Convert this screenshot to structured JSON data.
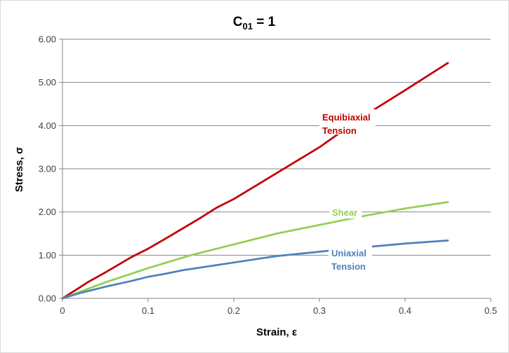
{
  "chart_data": {
    "type": "line",
    "title": "C",
    "title_subscript": "01",
    "title_suffix": " = 1",
    "xlabel": "Strain, ε",
    "ylabel": "Stress, σ",
    "xlim": [
      0,
      0.5
    ],
    "ylim": [
      0,
      6
    ],
    "x_ticks": [
      0,
      0.1,
      0.2,
      0.3,
      0.4,
      0.5
    ],
    "x_tick_labels": [
      "0",
      "0.1",
      "0.2",
      "0.3",
      "0.4",
      "0.5"
    ],
    "y_ticks": [
      0,
      1,
      2,
      3,
      4,
      5,
      6
    ],
    "y_tick_labels": [
      "0.00",
      "1.00",
      "2.00",
      "3.00",
      "4.00",
      "5.00",
      "6.00"
    ],
    "grid": "horizontal",
    "legend": "none (inline labels)",
    "series": [
      {
        "name": "Equibiaxial Tension",
        "label_lines": [
          "Equibiaxial",
          "Tension"
        ],
        "color": "#c00000",
        "x": [
          0,
          0.02,
          0.03,
          0.05,
          0.08,
          0.1,
          0.12,
          0.16,
          0.18,
          0.2,
          0.25,
          0.3,
          0.35,
          0.4,
          0.45
        ],
        "y": [
          0,
          0.25,
          0.38,
          0.6,
          0.95,
          1.15,
          1.38,
          1.85,
          2.1,
          2.3,
          2.9,
          3.5,
          4.2,
          4.82,
          5.45
        ]
      },
      {
        "name": "Shear",
        "label_lines": [
          "Shear"
        ],
        "color": "#92d050",
        "x": [
          0,
          0.02,
          0.05,
          0.1,
          0.15,
          0.2,
          0.25,
          0.3,
          0.35,
          0.4,
          0.45
        ],
        "y": [
          0,
          0.15,
          0.37,
          0.7,
          1.0,
          1.25,
          1.5,
          1.7,
          1.9,
          2.08,
          2.23
        ]
      },
      {
        "name": "Uniaxial Tension",
        "label_lines": [
          "Uniaxial",
          "Tension"
        ],
        "color": "#4f81bd",
        "x": [
          0,
          0.02,
          0.05,
          0.08,
          0.1,
          0.12,
          0.14,
          0.2,
          0.25,
          0.3,
          0.35,
          0.4,
          0.45
        ],
        "y": [
          0,
          0.12,
          0.27,
          0.4,
          0.5,
          0.57,
          0.65,
          0.83,
          0.98,
          1.08,
          1.18,
          1.27,
          1.34
        ]
      }
    ]
  }
}
